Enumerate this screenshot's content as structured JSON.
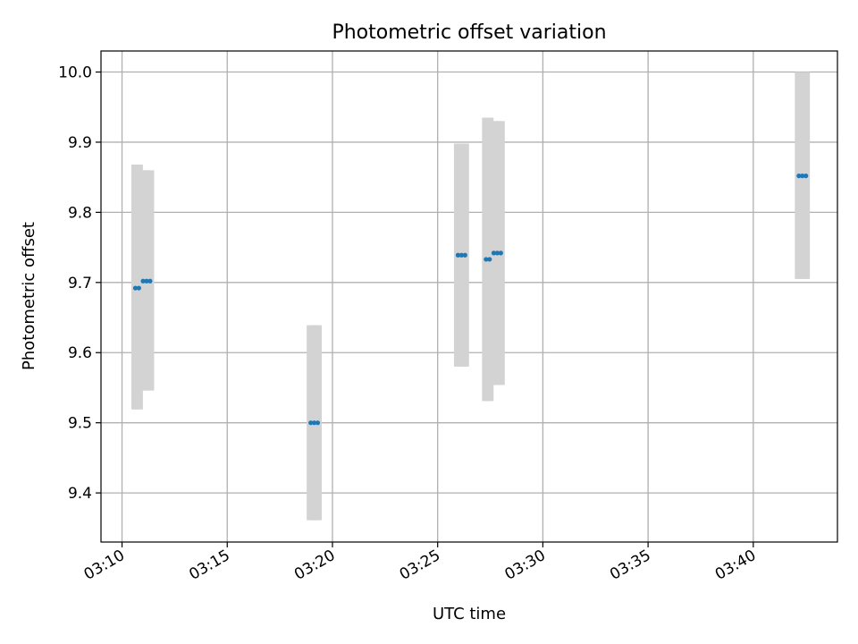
{
  "chart_data": {
    "type": "scatter",
    "title": "Photometric offset variation",
    "xlabel": "UTC time",
    "ylabel": "Photometric offset",
    "x_tick_labels": [
      "03:10",
      "03:15",
      "03:20",
      "03:25",
      "03:30",
      "03:35",
      "03:40"
    ],
    "y_tick_labels": [
      "9.4",
      "9.5",
      "9.6",
      "9.7",
      "9.8",
      "9.9",
      "10.0"
    ],
    "xlim": [
      "03:09:00",
      "03:44:00"
    ],
    "ylim": [
      9.33,
      10.03
    ],
    "grid": true,
    "colors": {
      "points": "#1f77b4",
      "error_bars": "#d3d3d3",
      "grid": "#b0b0b0"
    },
    "series": [
      {
        "points": [
          {
            "x": "03:10:38",
            "y": 9.692,
            "low": 9.519,
            "high": 9.868
          },
          {
            "x": "03:10:48",
            "y": 9.692,
            "low": 9.519,
            "high": 9.868
          },
          {
            "x": "03:11:00",
            "y": 9.702,
            "low": 9.546,
            "high": 9.86
          },
          {
            "x": "03:11:10",
            "y": 9.702,
            "low": 9.546,
            "high": 9.86
          },
          {
            "x": "03:11:20",
            "y": 9.702,
            "low": 9.546,
            "high": 9.86
          },
          {
            "x": "03:18:58",
            "y": 9.5,
            "low": 9.361,
            "high": 9.639
          },
          {
            "x": "03:19:08",
            "y": 9.5,
            "low": 9.361,
            "high": 9.639
          },
          {
            "x": "03:19:18",
            "y": 9.5,
            "low": 9.361,
            "high": 9.639
          },
          {
            "x": "03:25:58",
            "y": 9.739,
            "low": 9.58,
            "high": 9.898
          },
          {
            "x": "03:26:08",
            "y": 9.739,
            "low": 9.58,
            "high": 9.898
          },
          {
            "x": "03:26:18",
            "y": 9.739,
            "low": 9.58,
            "high": 9.898
          },
          {
            "x": "03:27:18",
            "y": 9.733,
            "low": 9.531,
            "high": 9.935
          },
          {
            "x": "03:27:28",
            "y": 9.733,
            "low": 9.531,
            "high": 9.935
          },
          {
            "x": "03:27:40",
            "y": 9.742,
            "low": 9.554,
            "high": 9.93
          },
          {
            "x": "03:27:50",
            "y": 9.742,
            "low": 9.554,
            "high": 9.93
          },
          {
            "x": "03:28:00",
            "y": 9.742,
            "low": 9.554,
            "high": 9.93
          },
          {
            "x": "03:42:10",
            "y": 9.852,
            "low": 9.705,
            "high": 10.0
          },
          {
            "x": "03:42:20",
            "y": 9.852,
            "low": 9.705,
            "high": 10.0
          },
          {
            "x": "03:42:30",
            "y": 9.852,
            "low": 9.705,
            "high": 10.0
          }
        ]
      }
    ]
  }
}
